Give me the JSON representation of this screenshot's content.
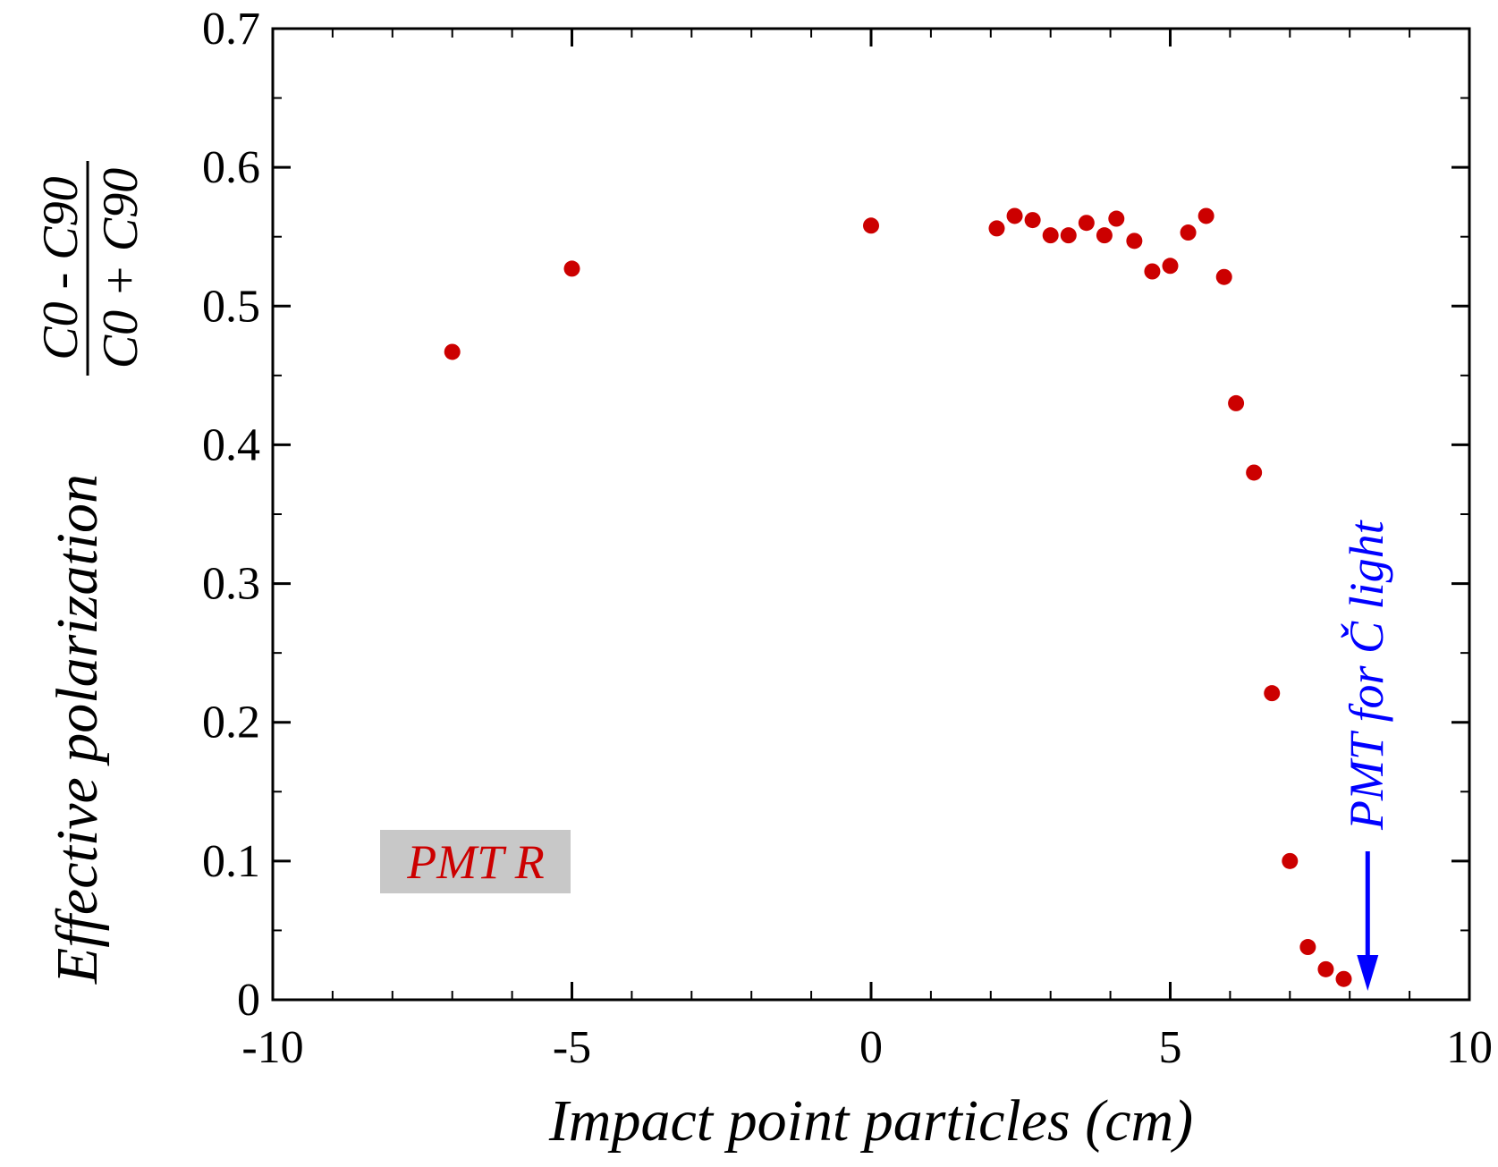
{
  "chart_data": {
    "type": "scatter",
    "xlabel": "Impact point particles (cm)",
    "ylabel_text": "Effective polarization",
    "ylabel_fraction": {
      "numerator": "C0 - C90",
      "denominator": "C0 + C90"
    },
    "xlim": [
      -10,
      10
    ],
    "ylim": [
      0,
      0.7
    ],
    "x_ticks": [
      -10,
      -5,
      0,
      5,
      10
    ],
    "x_tick_labels": [
      "-10",
      "-5",
      "0",
      "5",
      "10"
    ],
    "y_ticks": [
      0,
      0.1,
      0.2,
      0.3,
      0.4,
      0.5,
      0.6,
      0.7
    ],
    "y_tick_labels": [
      "0",
      "0.1",
      "0.2",
      "0.3",
      "0.4",
      "0.5",
      "0.6",
      "0.7"
    ],
    "grid": false,
    "legend_label": "PMT R",
    "annotation": "PMT for Č light",
    "annotation_arrow_x": 8.3,
    "colors": {
      "points": "#cc0000",
      "annotation": "#0000ff",
      "legend_box": "#c8c8c8"
    },
    "series": [
      {
        "points": [
          {
            "x": -7.0,
            "y": 0.467
          },
          {
            "x": -5.0,
            "y": 0.527
          },
          {
            "x": 0.0,
            "y": 0.558
          },
          {
            "x": 2.1,
            "y": 0.556
          },
          {
            "x": 2.4,
            "y": 0.565
          },
          {
            "x": 2.7,
            "y": 0.562
          },
          {
            "x": 3.0,
            "y": 0.551
          },
          {
            "x": 3.3,
            "y": 0.551
          },
          {
            "x": 3.6,
            "y": 0.56
          },
          {
            "x": 3.9,
            "y": 0.551
          },
          {
            "x": 4.1,
            "y": 0.563
          },
          {
            "x": 4.4,
            "y": 0.547
          },
          {
            "x": 4.7,
            "y": 0.525
          },
          {
            "x": 5.0,
            "y": 0.529
          },
          {
            "x": 5.3,
            "y": 0.553
          },
          {
            "x": 5.6,
            "y": 0.565
          },
          {
            "x": 5.9,
            "y": 0.521
          },
          {
            "x": 6.1,
            "y": 0.43
          },
          {
            "x": 6.4,
            "y": 0.38
          },
          {
            "x": 6.7,
            "y": 0.221
          },
          {
            "x": 7.0,
            "y": 0.1
          },
          {
            "x": 7.3,
            "y": 0.038
          },
          {
            "x": 7.6,
            "y": 0.022
          },
          {
            "x": 7.9,
            "y": 0.015
          }
        ]
      }
    ]
  }
}
